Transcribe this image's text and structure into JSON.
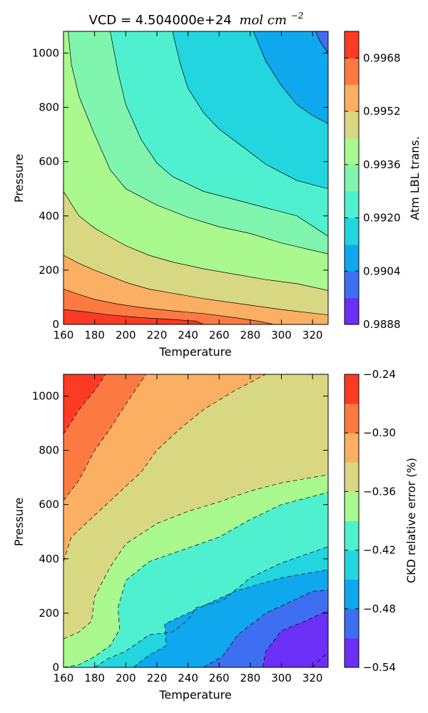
{
  "chart_data": [
    {
      "type": "contourf",
      "title": "VCD = 4.504000e+24",
      "title_math": "mol cm",
      "title_exp": "−2",
      "xlabel": "Temperature",
      "ylabel": "Pressure",
      "xlim": [
        160,
        330
      ],
      "ylim": [
        0,
        1080
      ],
      "x_ticks": [
        "160",
        "180",
        "200",
        "220",
        "240",
        "260",
        "280",
        "300",
        "320"
      ],
      "y_ticks": [
        "0",
        "200",
        "400",
        "600",
        "800",
        "1000"
      ],
      "colorbar": {
        "label": "Atm LBL trans.",
        "range": [
          0.9888,
          0.9976
        ],
        "ticks": [
          "0.9888",
          "0.9904",
          "0.9920",
          "0.9936",
          "0.9952",
          "0.9968"
        ],
        "tick_values": [
          0.9888,
          0.9904,
          0.992,
          0.9936,
          0.9952,
          0.9968
        ],
        "levels": [
          0.9888,
          0.9896,
          0.9904,
          0.9912,
          0.992,
          0.9928,
          0.9936,
          0.9944,
          0.9952,
          0.996,
          0.9968,
          0.9976
        ],
        "colors": [
          "#6b2ff5",
          "#3e6ff0",
          "#0fa8ee",
          "#22d5df",
          "#4ff0cf",
          "#7ff5ad",
          "#a9f98e",
          "#d9d882",
          "#fbaf62",
          "#fc7a42",
          "#fd3a23"
        ]
      },
      "contour_lines": [
        [
          [
            160,
            55
          ],
          [
            175,
            46
          ],
          [
            190,
            35
          ],
          [
            210,
            25
          ],
          [
            230,
            18
          ],
          [
            245,
            12
          ],
          [
            250,
            0
          ]
        ],
        [
          [
            160,
            130
          ],
          [
            170,
            110
          ],
          [
            180,
            92
          ],
          [
            195,
            75
          ],
          [
            210,
            62
          ],
          [
            230,
            50
          ],
          [
            250,
            40
          ],
          [
            270,
            25
          ],
          [
            285,
            12
          ],
          [
            295,
            0
          ]
        ],
        [
          [
            160,
            255
          ],
          [
            170,
            225
          ],
          [
            180,
            200
          ],
          [
            190,
            178
          ],
          [
            200,
            155
          ],
          [
            215,
            130
          ],
          [
            230,
            115
          ],
          [
            250,
            95
          ],
          [
            275,
            75
          ],
          [
            300,
            55
          ],
          [
            330,
            35
          ]
        ],
        [
          [
            160,
            490
          ],
          [
            170,
            400
          ],
          [
            180,
            355
          ],
          [
            190,
            322
          ],
          [
            200,
            290
          ],
          [
            215,
            255
          ],
          [
            230,
            230
          ],
          [
            250,
            205
          ],
          [
            270,
            185
          ],
          [
            290,
            165
          ],
          [
            310,
            150
          ],
          [
            330,
            125
          ]
        ],
        [
          [
            163,
            1080
          ],
          [
            165,
            960
          ],
          [
            170,
            840
          ],
          [
            180,
            700
          ],
          [
            190,
            570
          ],
          [
            200,
            500
          ],
          [
            220,
            440
          ],
          [
            240,
            395
          ],
          [
            260,
            360
          ],
          [
            280,
            335
          ],
          [
            300,
            300
          ],
          [
            330,
            260
          ]
        ],
        [
          [
            190,
            1080
          ],
          [
            195,
            930
          ],
          [
            200,
            810
          ],
          [
            210,
            680
          ],
          [
            220,
            595
          ],
          [
            230,
            545
          ],
          [
            250,
            490
          ],
          [
            270,
            460
          ],
          [
            290,
            430
          ],
          [
            310,
            400
          ],
          [
            330,
            325
          ]
        ],
        [
          [
            230,
            1080
          ],
          [
            235,
            960
          ],
          [
            240,
            870
          ],
          [
            250,
            780
          ],
          [
            260,
            720
          ],
          [
            275,
            655
          ],
          [
            290,
            590
          ],
          [
            310,
            530
          ],
          [
            330,
            500
          ]
        ],
        [
          [
            282,
            1080
          ],
          [
            290,
            970
          ],
          [
            300,
            880
          ],
          [
            310,
            810
          ],
          [
            320,
            770
          ],
          [
            330,
            740
          ]
        ],
        [
          [
            322,
            1080
          ],
          [
            325,
            1040
          ],
          [
            330,
            1000
          ]
        ]
      ]
    },
    {
      "type": "contourf",
      "title": "",
      "xlabel": "Temperature",
      "ylabel": "Pressure",
      "xlim": [
        160,
        330
      ],
      "ylim": [
        0,
        1080
      ],
      "x_ticks": [
        "160",
        "180",
        "200",
        "220",
        "240",
        "260",
        "280",
        "300",
        "320"
      ],
      "y_ticks": [
        "0",
        "200",
        "400",
        "600",
        "800",
        "1000"
      ],
      "colorbar": {
        "label": "CKD relative error (%)",
        "range": [
          -0.54,
          -0.24
        ],
        "ticks": [
          "−0.54",
          "−0.48",
          "−0.42",
          "−0.36",
          "−0.30",
          "−0.24"
        ],
        "tick_values": [
          -0.54,
          -0.48,
          -0.42,
          -0.36,
          -0.3,
          -0.24
        ],
        "levels": [
          -0.54,
          -0.51,
          -0.48,
          -0.45,
          -0.42,
          -0.39,
          -0.36,
          -0.33,
          -0.3,
          -0.27,
          -0.24
        ],
        "colors": [
          "#6b2ff5",
          "#3e6ff0",
          "#0fa8ee",
          "#22d5df",
          "#4ff0cf",
          "#a9f98e",
          "#d9d882",
          "#fbaf62",
          "#fc7a42",
          "#fd3a23"
        ]
      },
      "contour_lines": [
        [
          [
            160,
            860
          ],
          [
            170,
            950
          ],
          [
            180,
            1020
          ],
          [
            187,
            1080
          ]
        ],
        [
          [
            160,
            615
          ],
          [
            170,
            690
          ],
          [
            180,
            800
          ],
          [
            190,
            880
          ],
          [
            200,
            970
          ],
          [
            213,
            1080
          ]
        ],
        [
          [
            160,
            390
          ],
          [
            165,
            480
          ],
          [
            180,
            560
          ],
          [
            195,
            640
          ],
          [
            210,
            720
          ],
          [
            220,
            800
          ],
          [
            235,
            880
          ],
          [
            250,
            950
          ],
          [
            270,
            1020
          ],
          [
            290,
            1080
          ]
        ],
        [
          [
            160,
            105
          ],
          [
            170,
            130
          ],
          [
            178,
            170
          ],
          [
            180,
            260
          ],
          [
            190,
            370
          ],
          [
            200,
            455
          ],
          [
            220,
            530
          ],
          [
            240,
            575
          ],
          [
            260,
            610
          ],
          [
            280,
            650
          ],
          [
            300,
            680
          ],
          [
            320,
            700
          ],
          [
            330,
            710
          ]
        ],
        [
          [
            160,
            0
          ],
          [
            170,
            10
          ],
          [
            180,
            40
          ],
          [
            190,
            80
          ],
          [
            196,
            140
          ],
          [
            195,
            220
          ],
          [
            200,
            320
          ],
          [
            215,
            390
          ],
          [
            240,
            440
          ],
          [
            260,
            480
          ],
          [
            280,
            545
          ],
          [
            300,
            600
          ],
          [
            330,
            645
          ]
        ],
        [
          [
            180,
            0
          ],
          [
            188,
            30
          ],
          [
            200,
            60
          ],
          [
            215,
            120
          ],
          [
            230,
            130
          ],
          [
            240,
            175
          ],
          [
            245,
            220
          ],
          [
            262,
            245
          ],
          [
            280,
            330
          ],
          [
            300,
            385
          ],
          [
            330,
            445
          ]
        ],
        [
          [
            205,
            0
          ],
          [
            215,
            45
          ],
          [
            226,
            80
          ],
          [
            225,
            160
          ],
          [
            240,
            200
          ],
          [
            270,
            280
          ],
          [
            300,
            330
          ],
          [
            330,
            360
          ]
        ],
        [
          [
            250,
            0
          ],
          [
            262,
            40
          ],
          [
            272,
            120
          ],
          [
            290,
            200
          ],
          [
            320,
            280
          ],
          [
            330,
            285
          ]
        ],
        [
          [
            288,
            0
          ],
          [
            290,
            60
          ],
          [
            300,
            135
          ],
          [
            315,
            170
          ],
          [
            330,
            210
          ]
        ],
        [
          [
            320,
            0
          ],
          [
            325,
            30
          ],
          [
            330,
            55
          ]
        ]
      ]
    }
  ]
}
